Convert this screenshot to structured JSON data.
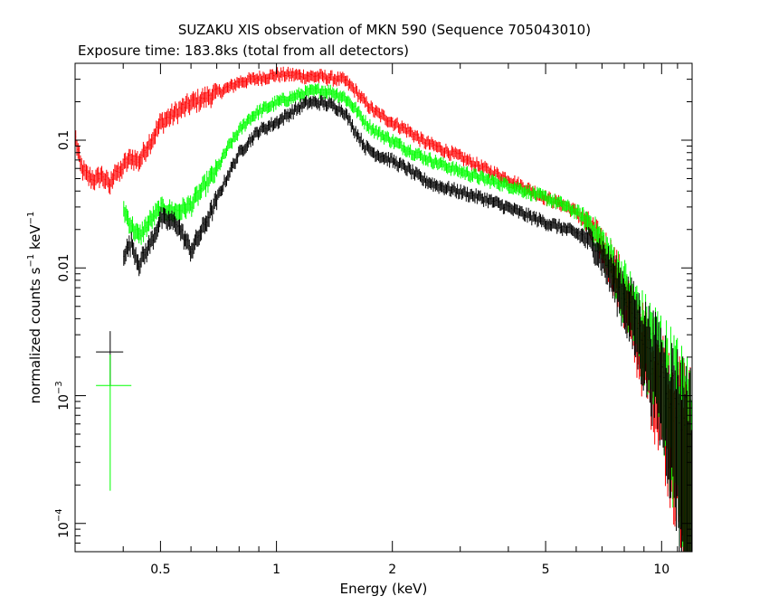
{
  "chart_data": {
    "type": "scatter",
    "title": "SUZAKU XIS observation of MKN 590 (Sequence 705043010)",
    "subtitle": "Exposure time: 183.8ks (total from all detectors)",
    "xlabel": "Energy (keV)",
    "ylabel_parts": {
      "base": "normalized counts s",
      "exp1": "−1",
      "mid": " keV",
      "exp2": "−1"
    },
    "xscale": "log",
    "yscale": "log",
    "xlim": [
      0.3,
      12
    ],
    "ylim": [
      6e-05,
      0.4
    ],
    "grid": false,
    "x_ticks": [
      {
        "value": 0.5,
        "label": "0.5"
      },
      {
        "value": 1,
        "label": "1"
      },
      {
        "value": 2,
        "label": "2"
      },
      {
        "value": 5,
        "label": "5"
      },
      {
        "value": 10,
        "label": "10"
      }
    ],
    "y_ticks": [
      {
        "value": 0.1,
        "label": "0.1"
      },
      {
        "value": 0.01,
        "label": "0.01"
      },
      {
        "value": 0.001,
        "label_base": "10",
        "label_exp": "−3"
      },
      {
        "value": 0.0001,
        "label_base": "10",
        "label_exp": "−4"
      }
    ],
    "legend_crosses": [
      {
        "color": "#000000",
        "x": 0.37,
        "y": 0.0022,
        "xerr": [
          0.34,
          0.4
        ],
        "yerr": [
          0.0012,
          0.0032
        ]
      },
      {
        "color": "#00ff00",
        "x": 0.37,
        "y": 0.0012,
        "xerr": [
          0.34,
          0.42
        ],
        "yerr": [
          0.00018,
          0.0021
        ]
      }
    ],
    "series": [
      {
        "color": "#ff0000",
        "points": [
          [
            0.3,
            0.11
          ],
          [
            0.31,
            0.065
          ],
          [
            0.32,
            0.055
          ],
          [
            0.33,
            0.052
          ],
          [
            0.34,
            0.05
          ],
          [
            0.35,
            0.055
          ],
          [
            0.36,
            0.05
          ],
          [
            0.37,
            0.045
          ],
          [
            0.38,
            0.06
          ],
          [
            0.39,
            0.055
          ],
          [
            0.4,
            0.065
          ],
          [
            0.42,
            0.075
          ],
          [
            0.44,
            0.07
          ],
          [
            0.46,
            0.09
          ],
          [
            0.48,
            0.11
          ],
          [
            0.5,
            0.14
          ],
          [
            0.55,
            0.17
          ],
          [
            0.6,
            0.2
          ],
          [
            0.65,
            0.22
          ],
          [
            0.7,
            0.24
          ],
          [
            0.75,
            0.26
          ],
          [
            0.8,
            0.29
          ],
          [
            0.85,
            0.3
          ],
          [
            0.9,
            0.31
          ],
          [
            1.0,
            0.33
          ],
          [
            1.1,
            0.33
          ],
          [
            1.2,
            0.32
          ],
          [
            1.3,
            0.32
          ],
          [
            1.4,
            0.31
          ],
          [
            1.5,
            0.3
          ],
          [
            1.6,
            0.25
          ],
          [
            1.7,
            0.2
          ],
          [
            1.8,
            0.17
          ],
          [
            2.0,
            0.14
          ],
          [
            2.2,
            0.12
          ],
          [
            2.4,
            0.1
          ],
          [
            2.6,
            0.09
          ],
          [
            3.0,
            0.075
          ],
          [
            3.5,
            0.06
          ],
          [
            4.0,
            0.05
          ],
          [
            4.5,
            0.042
          ],
          [
            5.0,
            0.036
          ],
          [
            5.5,
            0.032
          ],
          [
            6.0,
            0.028
          ],
          [
            6.5,
            0.022
          ],
          [
            7.0,
            0.016
          ],
          [
            7.5,
            0.011
          ],
          [
            8.0,
            0.0065
          ],
          [
            8.5,
            0.004
          ],
          [
            9.0,
            0.0028
          ],
          [
            9.5,
            0.002
          ],
          [
            10.0,
            0.0016
          ],
          [
            10.5,
            0.0012
          ],
          [
            11.0,
            0.0009
          ],
          [
            11.5,
            0.0008
          ],
          [
            12.0,
            0.0006
          ]
        ]
      },
      {
        "color": "#00ff00",
        "points": [
          [
            0.4,
            0.03
          ],
          [
            0.42,
            0.022
          ],
          [
            0.44,
            0.018
          ],
          [
            0.46,
            0.022
          ],
          [
            0.48,
            0.026
          ],
          [
            0.5,
            0.03
          ],
          [
            0.55,
            0.028
          ],
          [
            0.6,
            0.032
          ],
          [
            0.65,
            0.045
          ],
          [
            0.7,
            0.06
          ],
          [
            0.75,
            0.09
          ],
          [
            0.8,
            0.12
          ],
          [
            0.85,
            0.15
          ],
          [
            0.9,
            0.17
          ],
          [
            1.0,
            0.2
          ],
          [
            1.1,
            0.22
          ],
          [
            1.2,
            0.24
          ],
          [
            1.3,
            0.25
          ],
          [
            1.4,
            0.24
          ],
          [
            1.5,
            0.22
          ],
          [
            1.6,
            0.18
          ],
          [
            1.7,
            0.14
          ],
          [
            1.8,
            0.12
          ],
          [
            2.0,
            0.1
          ],
          [
            2.2,
            0.085
          ],
          [
            2.4,
            0.075
          ],
          [
            2.6,
            0.068
          ],
          [
            3.0,
            0.058
          ],
          [
            3.5,
            0.05
          ],
          [
            4.0,
            0.045
          ],
          [
            4.5,
            0.04
          ],
          [
            5.0,
            0.036
          ],
          [
            5.5,
            0.032
          ],
          [
            6.0,
            0.028
          ],
          [
            6.5,
            0.023
          ],
          [
            7.0,
            0.016
          ],
          [
            7.5,
            0.011
          ],
          [
            8.0,
            0.0075
          ],
          [
            8.5,
            0.005
          ],
          [
            9.0,
            0.0035
          ],
          [
            9.5,
            0.0028
          ],
          [
            10.0,
            0.0022
          ],
          [
            10.5,
            0.0016
          ],
          [
            11.0,
            0.0012
          ],
          [
            11.5,
            0.0009
          ],
          [
            12.0,
            0.0007
          ]
        ]
      },
      {
        "color": "#000000",
        "points": [
          [
            0.4,
            0.013
          ],
          [
            0.42,
            0.016
          ],
          [
            0.44,
            0.011
          ],
          [
            0.46,
            0.014
          ],
          [
            0.48,
            0.018
          ],
          [
            0.5,
            0.025
          ],
          [
            0.55,
            0.023
          ],
          [
            0.6,
            0.014
          ],
          [
            0.65,
            0.022
          ],
          [
            0.7,
            0.035
          ],
          [
            0.75,
            0.055
          ],
          [
            0.8,
            0.08
          ],
          [
            0.85,
            0.1
          ],
          [
            0.9,
            0.12
          ],
          [
            1.0,
            0.14
          ],
          [
            1.1,
            0.17
          ],
          [
            1.2,
            0.2
          ],
          [
            1.3,
            0.2
          ],
          [
            1.4,
            0.19
          ],
          [
            1.5,
            0.17
          ],
          [
            1.6,
            0.12
          ],
          [
            1.7,
            0.09
          ],
          [
            1.8,
            0.08
          ],
          [
            2.0,
            0.07
          ],
          [
            2.2,
            0.06
          ],
          [
            2.4,
            0.05
          ],
          [
            2.6,
            0.045
          ],
          [
            3.0,
            0.04
          ],
          [
            3.5,
            0.035
          ],
          [
            4.0,
            0.03
          ],
          [
            4.5,
            0.026
          ],
          [
            5.0,
            0.023
          ],
          [
            5.5,
            0.021
          ],
          [
            6.0,
            0.019
          ],
          [
            6.5,
            0.017
          ],
          [
            7.0,
            0.013
          ],
          [
            7.5,
            0.009
          ],
          [
            8.0,
            0.0065
          ],
          [
            8.5,
            0.0045
          ],
          [
            9.0,
            0.0032
          ],
          [
            9.5,
            0.0024
          ],
          [
            10.0,
            0.0018
          ],
          [
            10.5,
            0.0013
          ],
          [
            11.0,
            0.001
          ],
          [
            11.5,
            0.0008
          ],
          [
            12.0,
            0.0006
          ]
        ]
      }
    ]
  }
}
